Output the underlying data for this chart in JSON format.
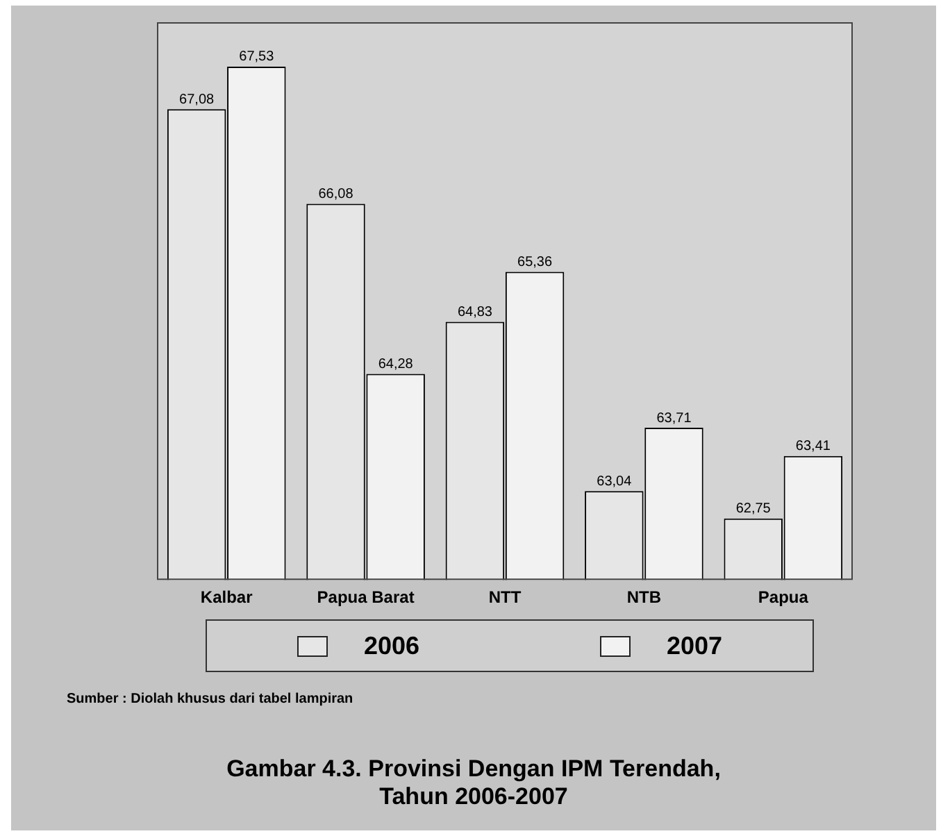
{
  "chart_data": {
    "type": "bar",
    "title": "Gambar 4.3. Provinsi Dengan IPM Terendah,\nTahun 2006-2007",
    "annotations": [
      "Sumber : Diolah khusus dari tabel lampiran"
    ],
    "categories": [
      "Kalbar",
      "Papua Barat",
      "NTT",
      "NTB",
      "Papua"
    ],
    "series": [
      {
        "name": "2006",
        "color": "#e6e6e6",
        "values": [
          67.08,
          66.08,
          64.83,
          63.04,
          62.75
        ],
        "value_labels": [
          "67,08",
          "66,08",
          "64,83",
          "63,04",
          "62,75"
        ]
      },
      {
        "name": "2007",
        "color": "#f2f2f2",
        "values": [
          67.53,
          64.28,
          65.36,
          63.71,
          63.41
        ],
        "value_labels": [
          "67,53",
          "64,28",
          "65,36",
          "63,71",
          "63,41"
        ]
      }
    ],
    "ylim": [
      62.1,
      68
    ],
    "grid": false,
    "legend": "bottom"
  }
}
